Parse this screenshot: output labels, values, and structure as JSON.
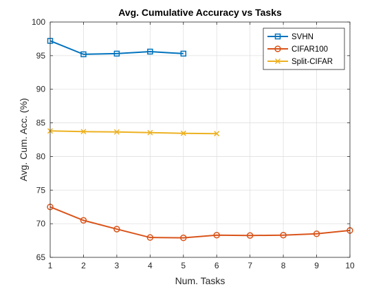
{
  "chart_data": {
    "type": "line",
    "title": "Avg. Cumulative Accuracy vs Tasks",
    "xlabel": "Num. Tasks",
    "ylabel": "Avg. Cum. Acc. (%)",
    "xlim": [
      1,
      10
    ],
    "ylim": [
      65,
      100
    ],
    "xticks": [
      "1",
      "2",
      "3",
      "4",
      "5",
      "6",
      "7",
      "8",
      "9",
      "10"
    ],
    "yticks": [
      "65",
      "70",
      "75",
      "80",
      "85",
      "90",
      "95",
      "100"
    ],
    "grid": true,
    "legend_position": "top-right",
    "series": [
      {
        "name": "SVHN",
        "color": "#0072BD",
        "marker": "square",
        "x": [
          1,
          2,
          3,
          4,
          5
        ],
        "y": [
          97.2,
          95.2,
          95.3,
          95.6,
          95.3
        ]
      },
      {
        "name": "CIFAR100",
        "color": "#D95319",
        "marker": "circle",
        "x": [
          1,
          2,
          3,
          4,
          5,
          6,
          7,
          8,
          9,
          10
        ],
        "y": [
          72.5,
          70.5,
          69.2,
          67.95,
          67.9,
          68.3,
          68.25,
          68.3,
          68.5,
          69.0
        ]
      },
      {
        "name": "Split-CIFAR",
        "color": "#EDB120",
        "marker": "x",
        "x": [
          1,
          2,
          3,
          4,
          5,
          6
        ],
        "y": [
          83.8,
          83.7,
          83.65,
          83.55,
          83.45,
          83.4
        ]
      }
    ]
  }
}
